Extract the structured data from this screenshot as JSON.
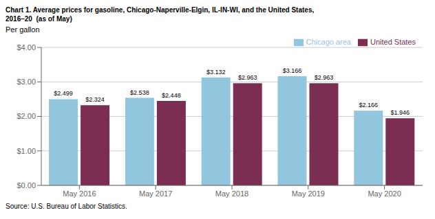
{
  "chart_data": {
    "type": "bar",
    "title": "Chart 1. Average prices for gasoline, Chicago-Naperville-Elgin, IL-IN-WI, and the United States,",
    "subtitle": "2016–20  (as of May)",
    "y_label": "Per gallon",
    "categories": [
      "May 2016",
      "May 2017",
      "May 2018",
      "May 2019",
      "May 2020"
    ],
    "series": [
      {
        "name": "Chicago area",
        "color": "#92C5DE",
        "values": [
          2.499,
          2.538,
          3.132,
          3.166,
          2.166
        ],
        "value_labels": [
          "$2.499",
          "$2.538",
          "$3.132",
          "$3.166",
          "$2.166"
        ]
      },
      {
        "name": "United States",
        "color": "#7B2D52",
        "values": [
          2.324,
          2.448,
          2.963,
          2.963,
          1.946
        ],
        "value_labels": [
          "$2.324",
          "$2.448",
          "$2.963",
          "$2.963",
          "$1.946"
        ]
      }
    ],
    "ylim": [
      0.0,
      4.0
    ],
    "yticks": [
      {
        "value": 0.0,
        "label": "$0.00"
      },
      {
        "value": 1.0,
        "label": "$1.00"
      },
      {
        "value": 2.0,
        "label": "$2.00"
      },
      {
        "value": 3.0,
        "label": "$3.00"
      },
      {
        "value": 4.0,
        "label": "$4.00"
      }
    ],
    "grid": true,
    "legend": "upper right",
    "data_labels": true,
    "annotations": [
      "Source: U.S. Bureau of Labor Statistics."
    ]
  }
}
